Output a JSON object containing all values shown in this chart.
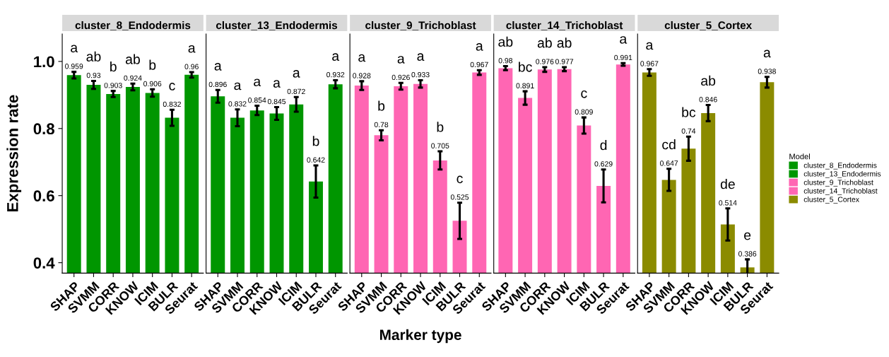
{
  "chart_data": [
    {
      "type": "bar",
      "title": "cluster_8_Endodermis",
      "ylabel": "Expression rate",
      "categories": [
        "SHAP",
        "SVMM",
        "CORR",
        "KNOW",
        "ICIM",
        "BULR",
        "Seurat"
      ],
      "series": [
        {
          "name": "cluster_8_Endodermis",
          "color": "#009600",
          "values": [
            0.959,
            0.93,
            0.903,
            0.924,
            0.906,
            0.832,
            0.96
          ],
          "errors": [
            0.01,
            0.012,
            0.009,
            0.01,
            0.011,
            0.024,
            0.008
          ]
        }
      ],
      "ylim": [
        0.369,
        1.082
      ],
      "yticks": [
        0.4,
        0.6,
        0.8,
        {
          "value": 1.0,
          "label": "1.0"
        }
      ],
      "data_labels": true,
      "legend": "right",
      "legend_title": "Model",
      "grid": false,
      "annotations": [
        "a",
        "ab",
        "b",
        "ab",
        "b",
        "c",
        "a"
      ]
    },
    {
      "type": "bar",
      "title": "cluster_13_Endodermis",
      "categories": [
        "SHAP",
        "SVMM",
        "CORR",
        "KNOW",
        "ICIM",
        "BULR",
        "Seurat"
      ],
      "series": [
        {
          "name": "cluster_13_Endodermis",
          "color": "#009600",
          "values": [
            0.896,
            0.832,
            0.854,
            0.845,
            0.872,
            0.642,
            0.932
          ],
          "errors": [
            0.019,
            0.025,
            0.014,
            0.019,
            0.022,
            0.048,
            0.012
          ]
        }
      ],
      "ylim": [
        0.369,
        1.082
      ],
      "tick_labels": "x",
      "data_labels": true,
      "legend": "right",
      "grid": false,
      "annotations": [
        "a",
        "a",
        "a",
        "a",
        "a",
        "b",
        "a"
      ]
    },
    {
      "type": "bar",
      "title": "cluster_9_Trichoblast",
      "xlabel": "Marker type",
      "categories": [
        "SHAP",
        "SVMM",
        "CORR",
        "KNOW",
        "ICIM",
        "BULR",
        "Seurat"
      ],
      "series": [
        {
          "name": "cluster_9_Trichoblast",
          "color": "#ff66b3",
          "values": [
            0.928,
            0.78,
            0.926,
            0.933,
            0.705,
            0.525,
            0.967
          ],
          "errors": [
            0.013,
            0.015,
            0.01,
            0.011,
            0.027,
            0.054,
            0.007
          ]
        }
      ],
      "ylim": [
        0.369,
        1.082
      ],
      "tick_labels": "x",
      "data_labels": true,
      "legend": "right",
      "grid": false,
      "annotations": [
        "a",
        "b",
        "a",
        "a",
        "b",
        "c",
        "a"
      ]
    },
    {
      "type": "bar",
      "title": "cluster_14_Trichoblast",
      "categories": [
        "SHAP",
        "SVMM",
        "CORR",
        "KNOW",
        "ICIM",
        "BULR",
        "Seurat"
      ],
      "series": [
        {
          "name": "cluster_14_Trichoblast",
          "color": "#ff66b3",
          "values": [
            0.98,
            0.891,
            0.976,
            0.977,
            0.809,
            0.629,
            0.991
          ],
          "errors": [
            0.006,
            0.02,
            0.007,
            0.006,
            0.024,
            0.049,
            0.004
          ]
        }
      ],
      "ylim": [
        0.369,
        1.082
      ],
      "tick_labels": "x",
      "data_labels": true,
      "legend": "right",
      "grid": false,
      "annotations": [
        "ab",
        "bc",
        "ab",
        "ab",
        "c",
        "d",
        "a"
      ]
    },
    {
      "type": "bar",
      "title": "cluster_5_Cortex",
      "categories": [
        "SHAP",
        "SVMM",
        "CORR",
        "KNOW",
        "ICIM",
        "BULR",
        "Seurat"
      ],
      "series": [
        {
          "name": "cluster_5_Cortex",
          "color": "#8b8b00",
          "values": [
            0.967,
            0.647,
            0.74,
            0.846,
            0.514,
            0.386,
            0.938
          ],
          "errors": [
            0.01,
            0.033,
            0.036,
            0.024,
            0.048,
            0.024,
            0.016
          ]
        }
      ],
      "ylim": [
        0.369,
        1.082
      ],
      "tick_labels": "x",
      "data_labels": true,
      "legend": "right",
      "grid": false,
      "annotations": [
        "a",
        "cd",
        "bc",
        "ab",
        "de",
        "e",
        "a"
      ]
    }
  ]
}
